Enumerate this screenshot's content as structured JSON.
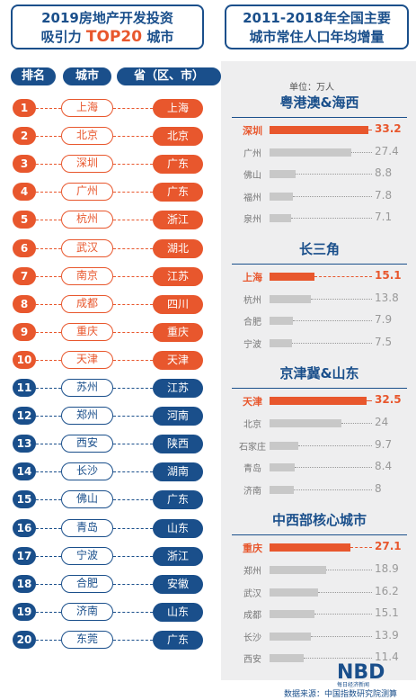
{
  "left_header": {
    "line1": "2019房地产开发投资",
    "line2_prefix": "吸引力",
    "line2_top": "TOP20",
    "line2_suffix": "城市"
  },
  "right_header": {
    "line1_years": "2011-2018年",
    "line1_rest": "全国主要",
    "line2": "城市常住人口年均增量"
  },
  "table_headers": {
    "rank": "排名",
    "city": "城市",
    "province": "省（区、市）"
  },
  "colors": {
    "blue": "#1a4f8b",
    "orange": "#e8572d"
  },
  "chart_data": [
    {
      "type": "table",
      "title": "2019房地产开发投资吸引力TOP20城市",
      "rows": [
        {
          "rank": "1",
          "city": "上海",
          "province": "上海"
        },
        {
          "rank": "2",
          "city": "北京",
          "province": "北京"
        },
        {
          "rank": "3",
          "city": "深圳",
          "province": "广东"
        },
        {
          "rank": "4",
          "city": "广州",
          "province": "广东"
        },
        {
          "rank": "5",
          "city": "杭州",
          "province": "浙江"
        },
        {
          "rank": "6",
          "city": "武汉",
          "province": "湖北"
        },
        {
          "rank": "7",
          "city": "南京",
          "province": "江苏"
        },
        {
          "rank": "8",
          "city": "成都",
          "province": "四川"
        },
        {
          "rank": "9",
          "city": "重庆",
          "province": "重庆"
        },
        {
          "rank": "10",
          "city": "天津",
          "province": "天津"
        },
        {
          "rank": "11",
          "city": "苏州",
          "province": "江苏"
        },
        {
          "rank": "12",
          "city": "郑州",
          "province": "河南"
        },
        {
          "rank": "13",
          "city": "西安",
          "province": "陕西"
        },
        {
          "rank": "14",
          "city": "长沙",
          "province": "湖南"
        },
        {
          "rank": "15",
          "city": "佛山",
          "province": "广东"
        },
        {
          "rank": "16",
          "city": "青岛",
          "province": "山东"
        },
        {
          "rank": "17",
          "city": "宁波",
          "province": "浙江"
        },
        {
          "rank": "18",
          "city": "合肥",
          "province": "安徽"
        },
        {
          "rank": "19",
          "city": "济南",
          "province": "山东"
        },
        {
          "rank": "20",
          "city": "东莞",
          "province": "广东"
        }
      ]
    },
    {
      "type": "bar",
      "title": "2011-2018年全国主要城市常住人口年均增量",
      "unit": "单位：万人",
      "xlim": [
        0,
        33.2
      ],
      "groups": [
        {
          "name": "粤港澳&海西",
          "bars": [
            {
              "label": "深圳",
              "value": 33.2,
              "highlight": true
            },
            {
              "label": "广州",
              "value": 27.4
            },
            {
              "label": "佛山",
              "value": 8.8
            },
            {
              "label": "福州",
              "value": 7.8
            },
            {
              "label": "泉州",
              "value": 7.1
            }
          ]
        },
        {
          "name": "长三角",
          "bars": [
            {
              "label": "上海",
              "value": 15.1,
              "highlight": true
            },
            {
              "label": "杭州",
              "value": 13.8
            },
            {
              "label": "合肥",
              "value": 7.9
            },
            {
              "label": "宁波",
              "value": 7.5
            }
          ]
        },
        {
          "name": "京津冀&山东",
          "bars": [
            {
              "label": "天津",
              "value": 32.5,
              "highlight": true
            },
            {
              "label": "北京",
              "value": 24
            },
            {
              "label": "石家庄",
              "value": 9.7
            },
            {
              "label": "青岛",
              "value": 8.4
            },
            {
              "label": "济南",
              "value": 8.0
            }
          ]
        },
        {
          "name": "中西部核心城市",
          "bars": [
            {
              "label": "重庆",
              "value": 27.1,
              "highlight": true
            },
            {
              "label": "郑州",
              "value": 18.9
            },
            {
              "label": "武汉",
              "value": 16.2
            },
            {
              "label": "成都",
              "value": 15.1
            },
            {
              "label": "长沙",
              "value": 13.9
            },
            {
              "label": "西安",
              "value": 11.4
            }
          ]
        }
      ]
    }
  ],
  "source": "数据来源：中国指数研究院测算",
  "logo": {
    "text": "NBD",
    "sub": "每日经济新闻"
  }
}
